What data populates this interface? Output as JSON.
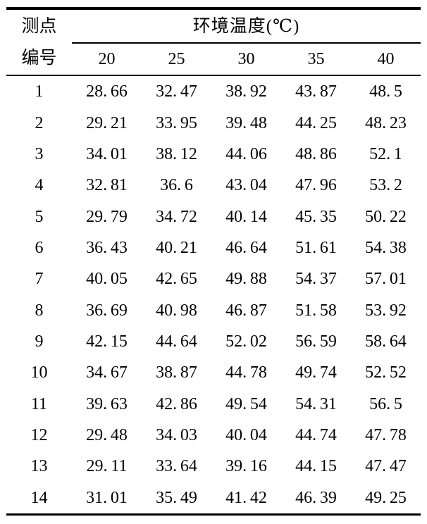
{
  "page": {
    "background_color": "#ffffff",
    "text_color": "#000000",
    "rule_color": "#000000"
  },
  "table": {
    "row_header": {
      "line1": "测点",
      "line2": "编号"
    },
    "group_header": "环境温度(℃)",
    "temperature_columns": [
      "20",
      "25",
      "30",
      "35",
      "40"
    ],
    "rows": [
      {
        "point": "1",
        "values": [
          "28.66",
          "32.47",
          "38.92",
          "43.87",
          "48.5"
        ]
      },
      {
        "point": "2",
        "values": [
          "29.21",
          "33.95",
          "39.48",
          "44.25",
          "48.23"
        ]
      },
      {
        "point": "3",
        "values": [
          "34.01",
          "38.12",
          "44.06",
          "48.86",
          "52.1"
        ]
      },
      {
        "point": "4",
        "values": [
          "32.81",
          "36.6",
          "43.04",
          "47.96",
          "53.2"
        ]
      },
      {
        "point": "5",
        "values": [
          "29.79",
          "34.72",
          "40.14",
          "45.35",
          "50.22"
        ]
      },
      {
        "point": "6",
        "values": [
          "36.43",
          "40.21",
          "46.64",
          "51.61",
          "54.38"
        ]
      },
      {
        "point": "7",
        "values": [
          "40.05",
          "42.65",
          "49.88",
          "54.37",
          "57.01"
        ]
      },
      {
        "point": "8",
        "values": [
          "36.69",
          "40.98",
          "46.87",
          "51.58",
          "53.92"
        ]
      },
      {
        "point": "9",
        "values": [
          "42.15",
          "44.64",
          "52.02",
          "56.59",
          "58.64"
        ]
      },
      {
        "point": "10",
        "values": [
          "34.67",
          "38.87",
          "44.78",
          "49.74",
          "52.52"
        ]
      },
      {
        "point": "11",
        "values": [
          "39.63",
          "42.86",
          "49.54",
          "54.31",
          "56.5"
        ]
      },
      {
        "point": "12",
        "values": [
          "29.48",
          "34.03",
          "40.04",
          "44.74",
          "47.78"
        ]
      },
      {
        "point": "13",
        "values": [
          "29.11",
          "33.64",
          "39.16",
          "44.15",
          "47.47"
        ]
      },
      {
        "point": "14",
        "values": [
          "31.01",
          "35.49",
          "41.42",
          "46.39",
          "49.25"
        ]
      }
    ]
  }
}
